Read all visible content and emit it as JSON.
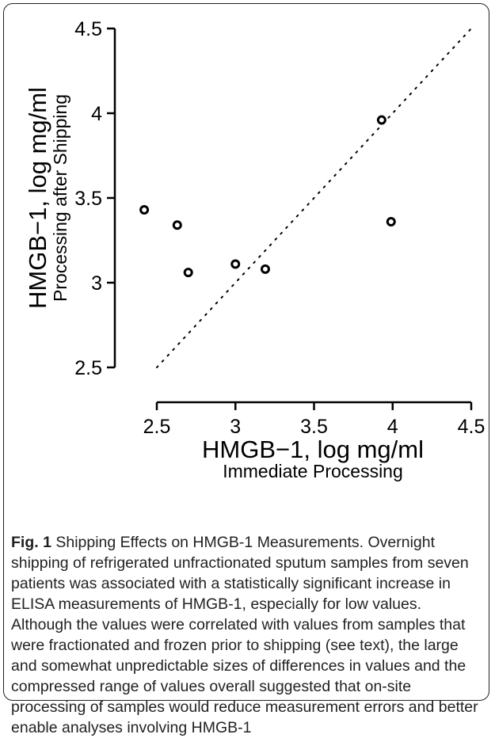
{
  "chart_data": {
    "type": "scatter",
    "xlabel": "HMGB−1, log mg/ml",
    "xlabel_sub": "Immediate Processing",
    "ylabel": "HMGB−1, log mg/ml",
    "ylabel_sub": "Processing after Shipping",
    "xlim": [
      2.5,
      4.5
    ],
    "ylim": [
      2.5,
      4.5
    ],
    "xticks": [
      "2.5",
      "3",
      "3.5",
      "4",
      "4.5"
    ],
    "yticks": [
      "2.5",
      "3",
      "3.5",
      "4",
      "4.5"
    ],
    "grid": false,
    "reference_line": {
      "style": "dotted",
      "from": [
        2.5,
        2.5
      ],
      "to": [
        4.5,
        4.5
      ]
    },
    "points": [
      {
        "x": 2.42,
        "y": 3.43
      },
      {
        "x": 2.63,
        "y": 3.34
      },
      {
        "x": 2.7,
        "y": 3.06
      },
      {
        "x": 3.0,
        "y": 3.11
      },
      {
        "x": 3.19,
        "y": 3.08
      },
      {
        "x": 3.93,
        "y": 3.96
      },
      {
        "x": 3.99,
        "y": 3.36
      }
    ]
  },
  "caption": {
    "label": "Fig. 1",
    "title": "Shipping Effects on HMGB-1 Measurements.",
    "text": "Overnight shipping of refrigerated unfractionated sputum samples from seven patients was associated with a statistically significant increase in ELISA measurements of HMGB-1, especially for low values. Although the values were correlated with values from samples that were fractionated and frozen prior to shipping (see text), the large and somewhat unpredictable sizes of differences in values and the compressed range of values overall suggested that on-site processing of samples would reduce measurement errors and better enable analyses involving HMGB-1"
  }
}
